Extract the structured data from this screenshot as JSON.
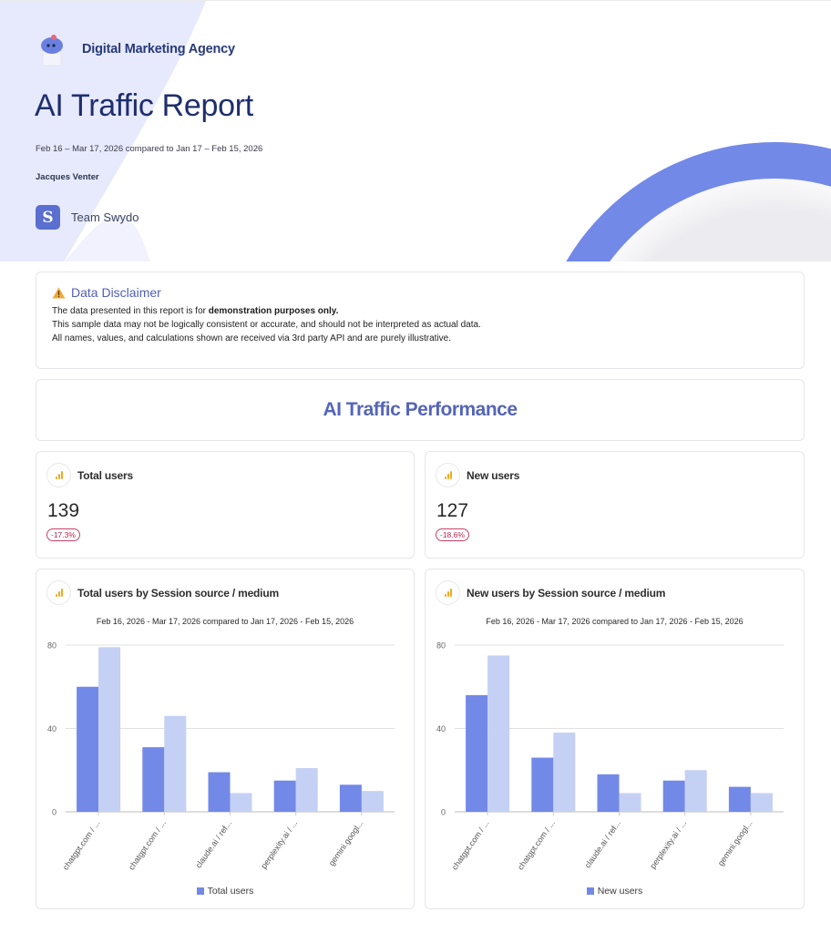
{
  "header": {
    "agency_name": "Digital Marketing Agency",
    "report_title": "AI Traffic Report",
    "date_range": "Feb 16 – Mar 17, 2026 compared to Jan 17 – Feb 15, 2026",
    "author": "Jacques Venter",
    "team_name": "Team Swydo",
    "team_logo_letter": "S"
  },
  "disclaimer": {
    "title": "Data Disclaimer",
    "icon": "warning-icon",
    "line1_prefix": "The data presented in this report is for ",
    "line1_bold": "demonstration purposes only.",
    "line2": "This sample data may not be logically consistent or accurate, and should not be interpreted as actual data.",
    "line3": "All names, values, and calculations shown are received via 3rd party API and are purely illustrative."
  },
  "section": {
    "title": "AI Traffic Performance"
  },
  "kpis": [
    {
      "label": "Total users",
      "value": "139",
      "change": "-17.3%",
      "icon": "google-analytics-icon"
    },
    {
      "label": "New users",
      "value": "127",
      "change": "-18.6%",
      "icon": "google-analytics-icon"
    }
  ],
  "charts": [
    {
      "title": "Total users by Session source / medium",
      "subtitle": "Feb 16, 2026 - Mar 17, 2026 compared to Jan 17, 2026 - Feb 15, 2026",
      "legend": "Total users"
    },
    {
      "title": "New users by Session source / medium",
      "subtitle": "Feb 16, 2026 - Mar 17, 2026 compared to Jan 17, 2026 - Feb 15, 2026",
      "legend": "New users"
    }
  ],
  "colors": {
    "current": "#7389e8",
    "previous": "#c5d0f5",
    "accent": "#5565b8",
    "title_navy": "#1e2e6e",
    "negative_badge": "#b0284e",
    "ga_orange": "#f4a81c"
  },
  "chart_data": [
    {
      "type": "bar",
      "title": "Total users by Session source / medium",
      "subtitle": "Feb 16, 2026 - Mar 17, 2026 compared to Jan 17, 2026 - Feb 15, 2026",
      "categories": [
        "chatgpt.com / ...",
        "chatgpt.com / ...",
        "claude.ai / ref...",
        "perplexity.ai / ...",
        "gemini.googl..."
      ],
      "series": [
        {
          "name": "Total users",
          "values": [
            60,
            31,
            19,
            15,
            13
          ]
        },
        {
          "name": "Total users (previous period)",
          "values": [
            79,
            46,
            9,
            21,
            10
          ]
        }
      ],
      "yticks": [
        0,
        40,
        80
      ],
      "ylim": [
        0,
        80
      ],
      "grid": true,
      "legend_position": "bottom",
      "xlabel": "",
      "ylabel": ""
    },
    {
      "type": "bar",
      "title": "New users by Session source / medium",
      "subtitle": "Feb 16, 2026 - Mar 17, 2026 compared to Jan 17, 2026 - Feb 15, 2026",
      "categories": [
        "chatgpt.com / ...",
        "chatgpt.com / ...",
        "claude.ai / ref...",
        "perplexity.ai / ...",
        "gemini.googl..."
      ],
      "series": [
        {
          "name": "New users",
          "values": [
            56,
            26,
            18,
            15,
            12
          ]
        },
        {
          "name": "New users (previous period)",
          "values": [
            75,
            38,
            9,
            20,
            9
          ]
        }
      ],
      "yticks": [
        0,
        40,
        80
      ],
      "ylim": [
        0,
        80
      ],
      "grid": true,
      "legend_position": "bottom",
      "xlabel": "",
      "ylabel": ""
    }
  ]
}
